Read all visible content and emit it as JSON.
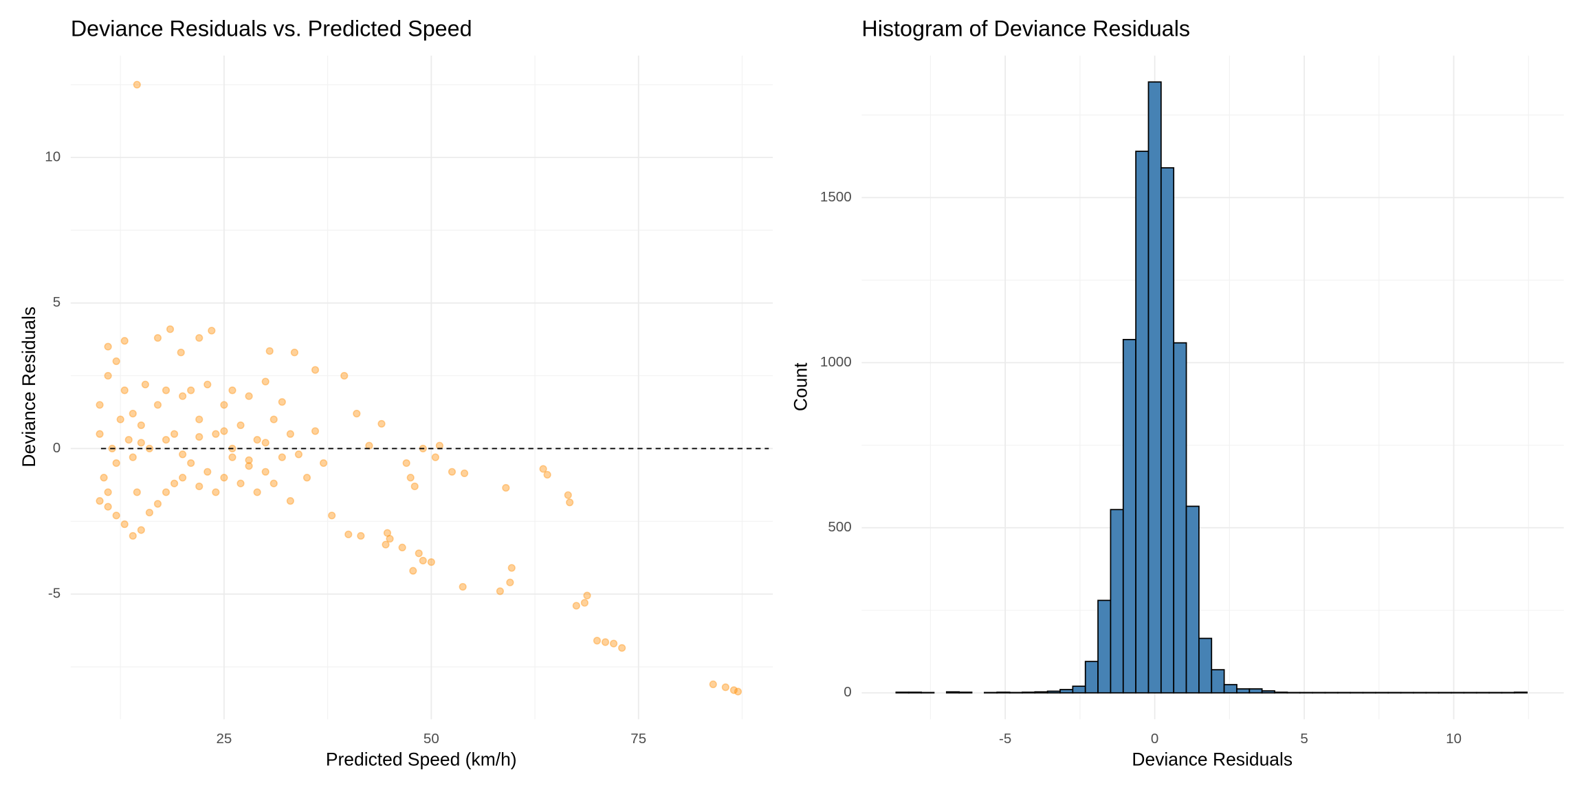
{
  "chart_data": [
    {
      "type": "scatter",
      "title": "Deviance Residuals vs. Predicted Speed",
      "x_label": "Predicted Speed (km/h)",
      "y_label": "Deviance Residuals",
      "color": "#ff8c00",
      "hline": 0,
      "xlim": [
        6.5,
        91.2
      ],
      "ylim": [
        -9.3,
        13.5
      ],
      "xticks": [
        25,
        50,
        75
      ],
      "yticks": [
        -5,
        0,
        5,
        10
      ],
      "grid": true,
      "x": [
        14.5,
        84,
        85.5,
        86.5,
        87,
        70,
        71,
        72,
        73,
        67.5,
        68.5,
        68.8,
        58.3,
        59.5,
        59.7,
        53.8,
        47.8,
        50,
        48.5,
        49,
        46.5,
        44.5,
        44.7,
        45,
        40,
        41.5,
        38,
        59,
        63.5,
        64,
        66.5,
        66.7,
        47.5,
        48,
        47,
        49,
        51,
        52.5,
        54,
        50.5,
        44,
        39.5,
        41,
        42.5,
        36,
        33.5,
        30.5,
        23.5,
        18.5,
        17,
        13,
        11,
        22,
        19.8,
        10,
        10,
        10,
        10.5,
        11,
        11,
        11.5,
        12,
        12,
        12.5,
        13,
        13,
        13.5,
        14,
        14,
        14.5,
        15,
        15,
        15.5,
        16,
        16,
        17,
        17,
        18,
        18,
        19,
        19,
        20,
        20,
        21,
        21,
        22,
        22,
        23,
        23,
        24,
        24,
        25,
        25,
        26,
        26,
        27,
        27,
        28,
        28,
        29,
        29,
        30,
        30,
        31,
        31,
        32,
        32,
        33,
        33,
        34,
        35,
        36,
        37,
        12,
        15,
        18,
        22,
        26,
        30,
        11,
        14,
        20,
        25,
        28
      ],
      "values": [
        12.5,
        -8.1,
        -8.2,
        -8.3,
        -8.35,
        -6.6,
        -6.65,
        -6.7,
        -6.85,
        -5.4,
        -5.3,
        -5.05,
        -4.9,
        -4.6,
        -4.1,
        -4.75,
        -4.2,
        -3.9,
        -3.6,
        -3.85,
        -3.4,
        -3.3,
        -2.9,
        -3.1,
        -2.95,
        -3.0,
        -2.3,
        -1.35,
        -0.7,
        -0.9,
        -1.6,
        -1.85,
        -1.0,
        -1.3,
        -0.5,
        0,
        0.1,
        -0.8,
        -0.85,
        -0.3,
        0.85,
        2.5,
        1.2,
        0.1,
        2.7,
        3.3,
        3.35,
        4.05,
        4.1,
        3.8,
        3.7,
        3.5,
        3.8,
        3.3,
        -1.8,
        0.5,
        1.5,
        -1.0,
        2.5,
        -2.0,
        0.0,
        3.0,
        -2.3,
        1.0,
        -2.6,
        2.0,
        0.3,
        -3.0,
        1.2,
        -1.5,
        -2.8,
        0.8,
        2.2,
        -2.2,
        0.0,
        -1.9,
        1.5,
        -1.5,
        2.0,
        -1.2,
        0.5,
        -1.0,
        1.8,
        -0.5,
        2.0,
        -1.3,
        1.0,
        -0.8,
        2.2,
        -1.5,
        0.5,
        -1.0,
        1.5,
        -0.3,
        2.0,
        -1.2,
        0.8,
        -0.6,
        1.8,
        -1.5,
        0.3,
        -0.8,
        2.3,
        -1.2,
        1.0,
        -0.3,
        1.6,
        -1.8,
        0.5,
        -0.2,
        -1.0,
        0.6,
        -0.5,
        -0.5,
        0.2,
        0.3,
        0.4,
        0.0,
        0.2,
        -1.5,
        -0.3,
        -0.2,
        0.6,
        -0.4
      ]
    },
    {
      "type": "histogram",
      "title": "Histogram of Deviance Residuals",
      "x_label": "Deviance Residuals",
      "y_label": "Count",
      "color": "#4682b4",
      "edge_color": "#000000",
      "xlim": [
        -9.8,
        13.68
      ],
      "ylim": [
        -80,
        1930
      ],
      "xticks": [
        -5,
        0,
        5,
        10
      ],
      "yticks": [
        0,
        500,
        1000,
        1500
      ],
      "grid": true,
      "bins": [
        -8.65,
        -8.228,
        -7.806,
        -7.384,
        -6.962,
        -6.54,
        -6.118,
        -5.696,
        -5.274,
        -4.852,
        -4.43,
        -4.008,
        -3.586,
        -3.164,
        -2.742,
        -2.32,
        -1.898,
        -1.476,
        -1.054,
        -0.632,
        -0.21,
        0.212,
        0.634,
        1.056,
        1.478,
        1.9,
        2.322,
        2.744,
        3.166,
        3.588,
        4.01,
        4.432,
        4.854,
        5.276,
        5.698,
        6.12,
        6.542,
        6.964,
        7.386,
        7.808,
        8.23,
        8.652,
        9.074,
        9.496,
        9.918,
        10.34,
        10.762,
        11.184,
        11.606,
        12.028,
        12.45
      ],
      "values": [
        2,
        2,
        1,
        0,
        3,
        2,
        0,
        1,
        2,
        1,
        2,
        3,
        5,
        10,
        20,
        95,
        280,
        555,
        1070,
        1640,
        1850,
        1590,
        1060,
        565,
        165,
        70,
        25,
        12,
        12,
        6,
        2,
        1,
        1,
        1,
        1,
        1,
        1,
        1,
        1,
        1,
        1,
        1,
        1,
        1,
        1,
        1,
        1,
        1,
        1,
        2
      ]
    }
  ]
}
